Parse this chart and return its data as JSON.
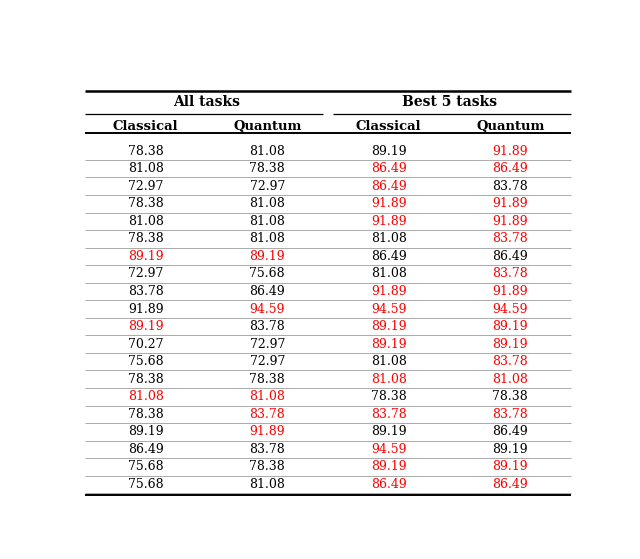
{
  "header_top": [
    "All tasks",
    "Best 5 tasks"
  ],
  "header_sub": [
    "Classical",
    "Quantum",
    "Classical",
    "Quantum"
  ],
  "all_classical": [
    "78.38",
    "81.08",
    "72.97",
    "78.38",
    "81.08",
    "78.38",
    "89.19",
    "72.97",
    "83.78",
    "91.89",
    "89.19",
    "70.27",
    "75.68",
    "78.38",
    "81.08",
    "78.38",
    "89.19",
    "86.49",
    "75.68",
    "75.68"
  ],
  "all_quantum": [
    "81.08",
    "78.38",
    "72.97",
    "81.08",
    "81.08",
    "81.08",
    "89.19",
    "75.68",
    "86.49",
    "94.59",
    "83.78",
    "72.97",
    "72.97",
    "78.38",
    "81.08",
    "83.78",
    "91.89",
    "83.78",
    "78.38",
    "81.08"
  ],
  "best_classical": [
    "89.19",
    "86.49",
    "86.49",
    "91.89",
    "91.89",
    "81.08",
    "86.49",
    "81.08",
    "91.89",
    "94.59",
    "89.19",
    "89.19",
    "81.08",
    "81.08",
    "78.38",
    "83.78",
    "89.19",
    "94.59",
    "89.19",
    "86.49"
  ],
  "best_quantum": [
    "91.89",
    "86.49",
    "83.78",
    "91.89",
    "91.89",
    "83.78",
    "86.49",
    "83.78",
    "91.89",
    "94.59",
    "89.19",
    "89.19",
    "83.78",
    "81.08",
    "78.38",
    "83.78",
    "86.49",
    "89.19",
    "89.19",
    "86.49"
  ],
  "all_classical_red": [
    false,
    false,
    false,
    false,
    false,
    false,
    true,
    false,
    false,
    false,
    true,
    false,
    false,
    false,
    true,
    false,
    false,
    false,
    false,
    false
  ],
  "all_quantum_red": [
    false,
    false,
    false,
    false,
    false,
    false,
    true,
    false,
    false,
    true,
    false,
    false,
    false,
    false,
    true,
    true,
    true,
    false,
    false,
    false
  ],
  "best_classical_red": [
    false,
    true,
    true,
    true,
    true,
    false,
    false,
    false,
    true,
    true,
    true,
    true,
    false,
    true,
    false,
    true,
    false,
    true,
    true,
    true
  ],
  "best_quantum_red": [
    true,
    true,
    false,
    true,
    true,
    true,
    false,
    true,
    true,
    true,
    true,
    true,
    true,
    true,
    false,
    true,
    false,
    false,
    true,
    true
  ]
}
